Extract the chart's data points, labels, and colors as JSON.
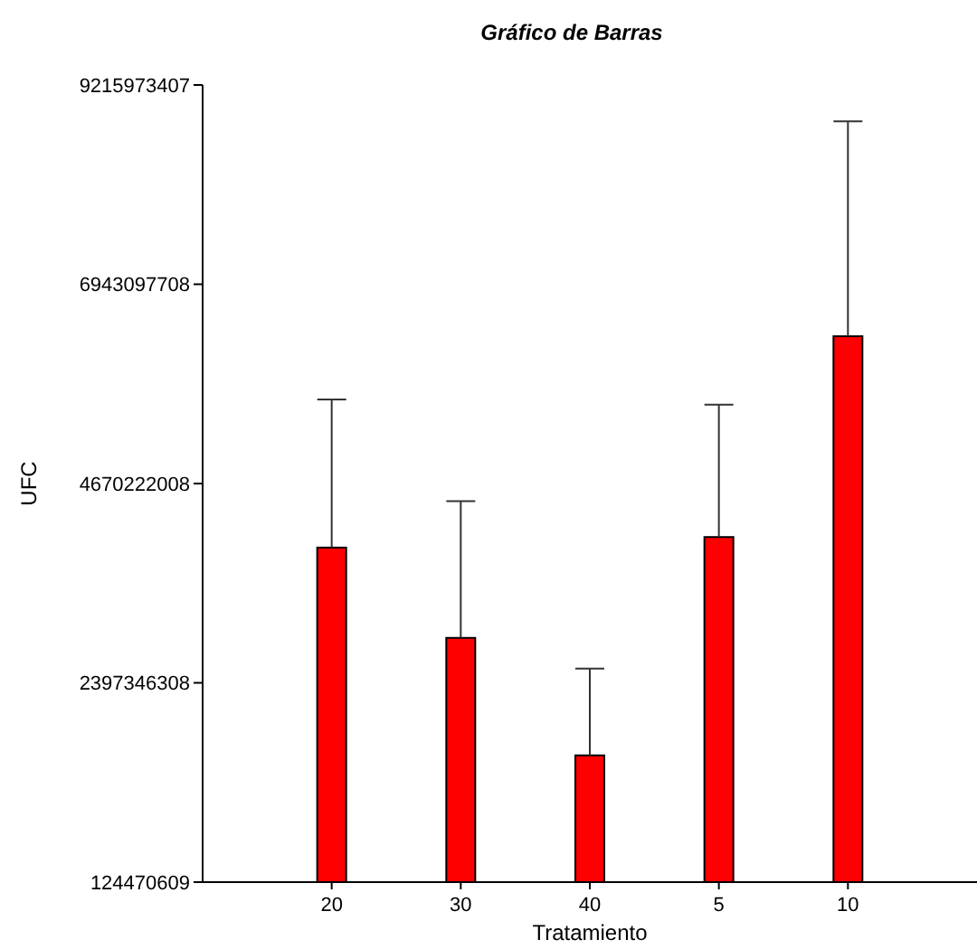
{
  "chart_data": {
    "type": "bar",
    "title": "Gráfico de Barras",
    "xlabel": "Tratamiento",
    "ylabel": "UFC",
    "categories": [
      "20",
      "30",
      "40",
      "5",
      "10"
    ],
    "values": [
      3940000000,
      2910000000,
      1570000000,
      4060000000,
      6350000000
    ],
    "errors": [
      [
        3940000000,
        5630000000
      ],
      [
        2910000000,
        4470000000
      ],
      [
        1570000000,
        2560000000
      ],
      [
        4060000000,
        5570000000
      ],
      [
        6350000000,
        8800000000
      ]
    ],
    "color": "#ff0000",
    "ylim": [
      124470609,
      9215973407
    ],
    "yticks": [
      124470609,
      2397346308,
      4670222008,
      6943097708,
      9215973407
    ],
    "grid": false
  }
}
